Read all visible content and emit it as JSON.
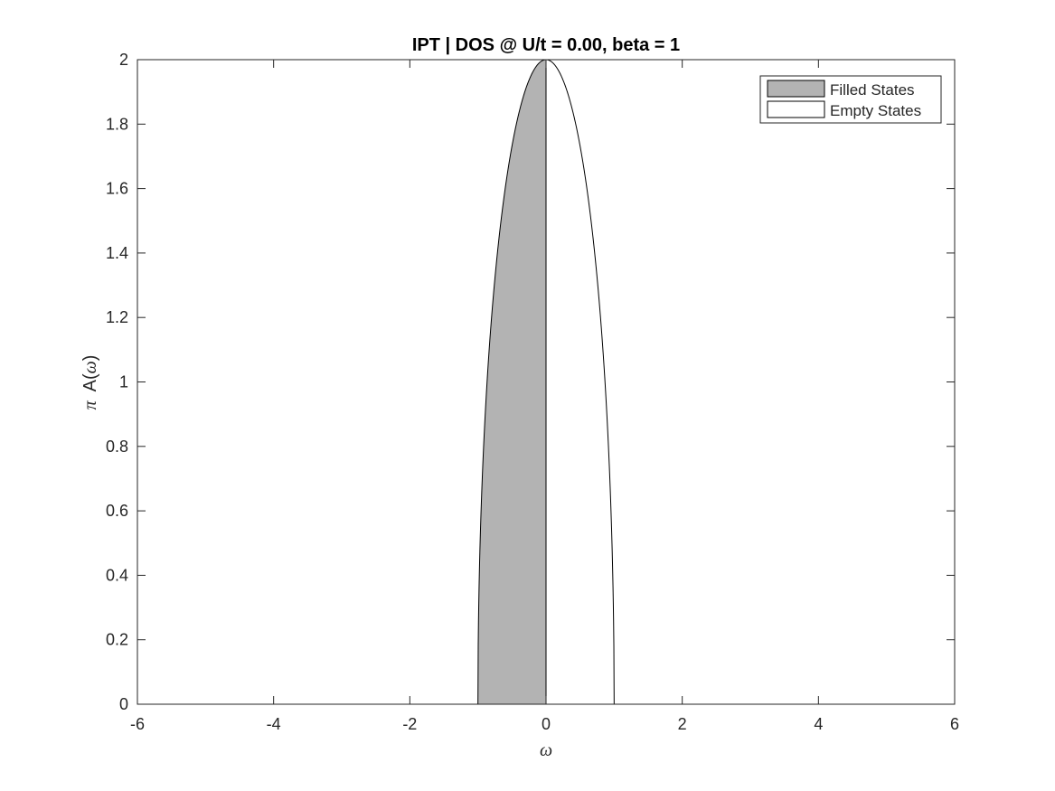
{
  "chart_data": {
    "type": "area",
    "title": "IPT  |  DOS @ U/t = 0.00, beta = 1",
    "xlabel": "ω",
    "ylabel_prefix": "π",
    "ylabel_main": "A(",
    "ylabel_var": "ω",
    "ylabel_close": ")",
    "xlim": [
      -6,
      6
    ],
    "ylim": [
      0,
      2
    ],
    "xticks": [
      -6,
      -4,
      -2,
      0,
      2,
      4,
      6
    ],
    "xtick_labels": [
      "-6",
      "-4",
      "-2",
      "0",
      "2",
      "4",
      "6"
    ],
    "yticks": [
      0,
      0.2,
      0.4,
      0.6,
      0.8,
      1,
      1.2,
      1.4,
      1.6,
      1.8,
      2
    ],
    "ytick_labels": [
      "0",
      "0.2",
      "0.4",
      "0.6",
      "0.8",
      "1",
      "1.2",
      "1.4",
      "1.6",
      "1.8",
      "2"
    ],
    "grid": false,
    "legend_position": "top-right",
    "function": "semicircle",
    "half_bandwidth": 1,
    "peak": 2,
    "series": [
      {
        "name": "Filled States",
        "x_range": [
          -1,
          0
        ],
        "fill": "#b3b3b3"
      },
      {
        "name": "Empty States",
        "x_range": [
          0,
          1
        ],
        "fill": "#ffffff"
      }
    ]
  }
}
